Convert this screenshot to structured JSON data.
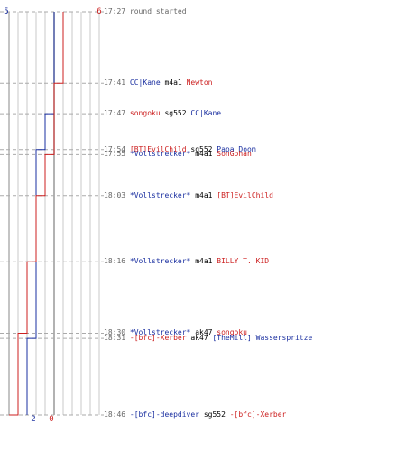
{
  "colors": {
    "blue": "#1a2fa0",
    "red": "#cc1f1f",
    "time": "#666666",
    "grid": "#c8c8c8",
    "dash": "#aaaaaa"
  },
  "scores": {
    "blue_start": "5",
    "red_start": "6",
    "blue_end": "2",
    "red_end": "0"
  },
  "events": [
    {
      "time": "17:27",
      "info": "round started",
      "blue_score": 5,
      "red_score": 6
    },
    {
      "time": "17:41",
      "killer": "CC|Kane",
      "killer_team": "blue",
      "weapon": "m4a1",
      "victim": "Newton",
      "victim_team": "red",
      "blue_score": 5,
      "red_score": 5
    },
    {
      "time": "17:47",
      "killer": "songoku",
      "killer_team": "red",
      "weapon": "sg552",
      "victim": "CC|Kane",
      "victim_team": "blue",
      "blue_score": 4,
      "red_score": 5
    },
    {
      "time": "17:54",
      "killer": "[BT]EvilChild",
      "killer_team": "red",
      "weapon": "sg552",
      "victim": "Papa Doom",
      "victim_team": "blue",
      "blue_score": 3,
      "red_score": 5
    },
    {
      "time": "17:55",
      "killer": "*Vollstrecker*",
      "killer_team": "blue",
      "weapon": "m4a1",
      "victim": "SonGohan",
      "victim_team": "red",
      "blue_score": 3,
      "red_score": 4
    },
    {
      "time": "18:03",
      "killer": "*Vollstrecker*",
      "killer_team": "blue",
      "weapon": "m4a1",
      "victim": "[BT]EvilChild",
      "victim_team": "red",
      "blue_score": 3,
      "red_score": 3
    },
    {
      "time": "18:16",
      "killer": "*Vollstrecker*",
      "killer_team": "blue",
      "weapon": "m4a1",
      "victim": "BILLY T. KID",
      "victim_team": "red",
      "blue_score": 3,
      "red_score": 2
    },
    {
      "time": "18:30",
      "killer": "*Vollstrecker*",
      "killer_team": "blue",
      "weapon": "ak47",
      "victim": "songoku",
      "victim_team": "red",
      "blue_score": 3,
      "red_score": 1
    },
    {
      "time": "18:31",
      "killer": "-[bfc]-Xerber",
      "killer_team": "red",
      "weapon": "ak47",
      "victim": "[TheMill] Wasserspritze",
      "victim_team": "blue",
      "blue_score": 2,
      "red_score": 1
    },
    {
      "time": "18:46",
      "killer": "-[bfc]-deepdiver",
      "killer_team": "blue",
      "weapon": "sg552",
      "victim": "-[bfc]-Xerber",
      "victim_team": "red",
      "blue_score": 2,
      "red_score": 0
    }
  ]
}
